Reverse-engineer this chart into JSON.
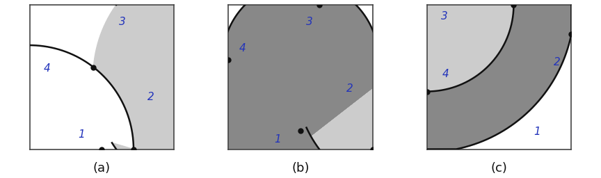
{
  "fig_width": 8.64,
  "fig_height": 2.56,
  "bg_color": "#ffffff",
  "border_color": "#444444",
  "fill_light": "#cccccc",
  "fill_dark": "#888888",
  "line_color": "#111111",
  "dot_color": "#111111",
  "label_color": "#2233bb",
  "caption_color": "#111111",
  "label_fontsize": 11,
  "caption_fontsize": 13,
  "panels": [
    "(a)",
    "(b)",
    "(c)"
  ]
}
